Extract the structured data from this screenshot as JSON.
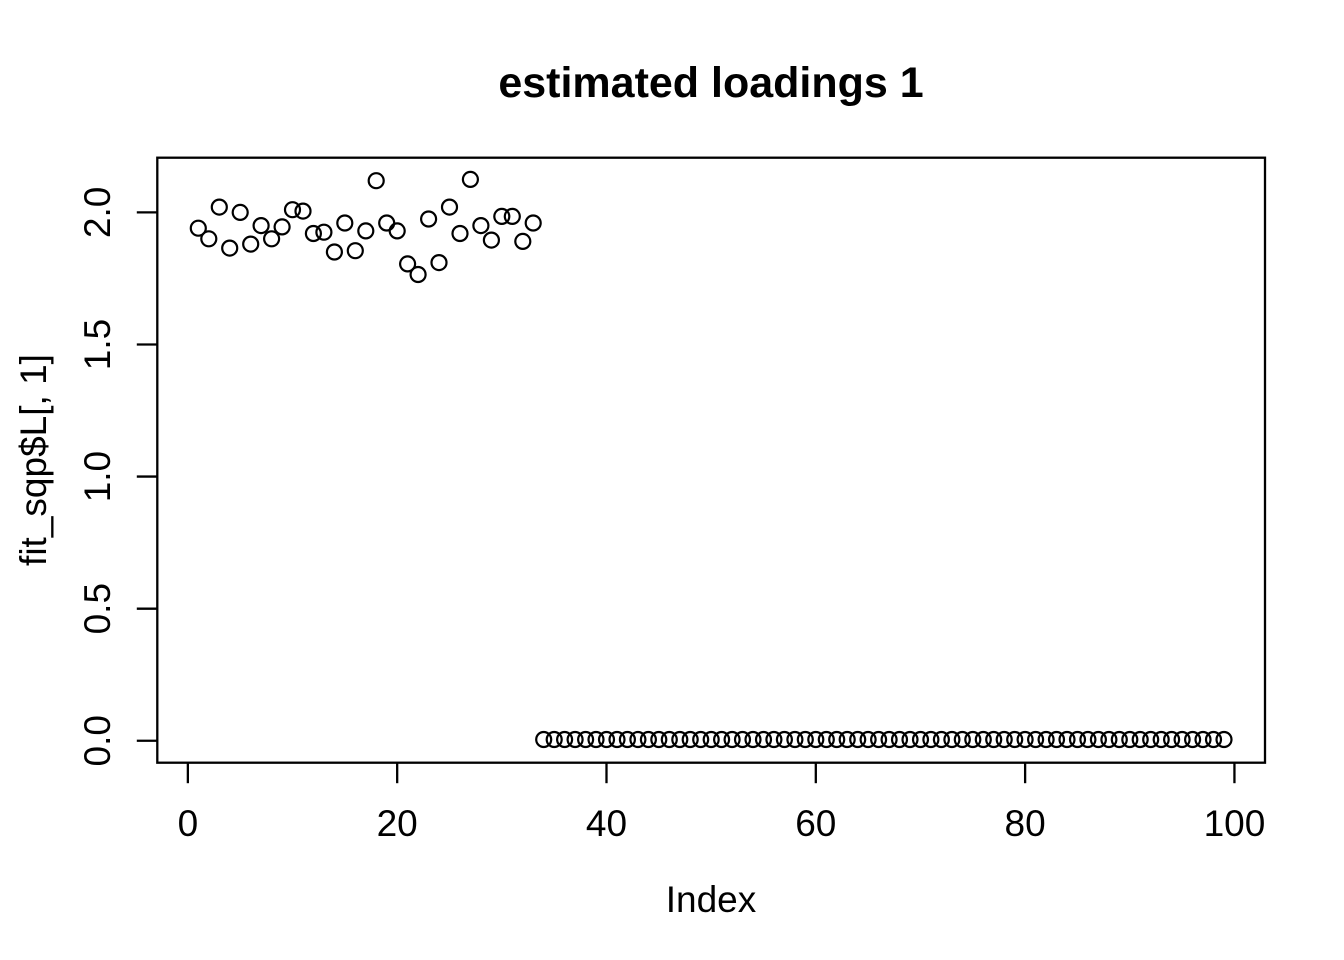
{
  "chart_data": {
    "type": "scatter",
    "title": "estimated loadings 1",
    "xlabel": "Index",
    "ylabel": "fit_sqp$L[, 1]",
    "point_shape": "open-circle",
    "point_color": "#000000",
    "background_color": "#ffffff",
    "axis_color": "#000000",
    "grid": false,
    "legend_position": "none",
    "xlim": [
      -2.92,
      102.92
    ],
    "ylim": [
      -0.083,
      2.207
    ],
    "x_ticks": [
      0,
      20,
      40,
      60,
      80,
      100
    ],
    "x_tick_labels": [
      "0",
      "20",
      "40",
      "60",
      "80",
      "100"
    ],
    "y_ticks": [
      0,
      0.5,
      1.0,
      1.5,
      2.0
    ],
    "y_tick_labels": [
      "0.0",
      "0.5",
      "1.0",
      "1.5",
      "2.0"
    ],
    "x": [
      1,
      2,
      3,
      4,
      5,
      6,
      7,
      8,
      9,
      10,
      11,
      12,
      13,
      14,
      15,
      16,
      17,
      18,
      19,
      20,
      21,
      22,
      23,
      24,
      25,
      26,
      27,
      28,
      29,
      30,
      31,
      32,
      33,
      34,
      35,
      36,
      37,
      38,
      39,
      40,
      41,
      42,
      43,
      44,
      45,
      46,
      47,
      48,
      49,
      50,
      51,
      52,
      53,
      54,
      55,
      56,
      57,
      58,
      59,
      60,
      61,
      62,
      63,
      64,
      65,
      66,
      67,
      68,
      69,
      70,
      71,
      72,
      73,
      74,
      75,
      76,
      77,
      78,
      79,
      80,
      81,
      82,
      83,
      84,
      85,
      86,
      87,
      88,
      89,
      90,
      91,
      92,
      93,
      94,
      95,
      96,
      97,
      98,
      99
    ],
    "y": [
      1.94,
      1.9,
      2.02,
      1.865,
      2.0,
      1.88,
      1.95,
      1.9,
      1.945,
      2.01,
      2.005,
      1.92,
      1.925,
      1.85,
      1.96,
      1.855,
      1.93,
      2.12,
      1.96,
      1.93,
      1.805,
      1.765,
      1.975,
      1.81,
      2.02,
      1.92,
      2.125,
      1.95,
      1.895,
      1.985,
      1.985,
      1.89,
      1.96,
      0.005,
      0.005,
      0.005,
      0.005,
      0.005,
      0.005,
      0.005,
      0.005,
      0.005,
      0.005,
      0.005,
      0.005,
      0.005,
      0.005,
      0.005,
      0.005,
      0.005,
      0.005,
      0.005,
      0.005,
      0.005,
      0.005,
      0.005,
      0.005,
      0.005,
      0.005,
      0.005,
      0.005,
      0.005,
      0.005,
      0.005,
      0.005,
      0.005,
      0.005,
      0.005,
      0.005,
      0.005,
      0.005,
      0.005,
      0.005,
      0.005,
      0.005,
      0.005,
      0.005,
      0.005,
      0.005,
      0.005,
      0.005,
      0.005,
      0.005,
      0.005,
      0.005,
      0.005,
      0.005,
      0.005,
      0.005,
      0.005,
      0.005,
      0.005,
      0.005,
      0.005,
      0.005,
      0.005,
      0.005,
      0.005,
      0.005
    ]
  }
}
